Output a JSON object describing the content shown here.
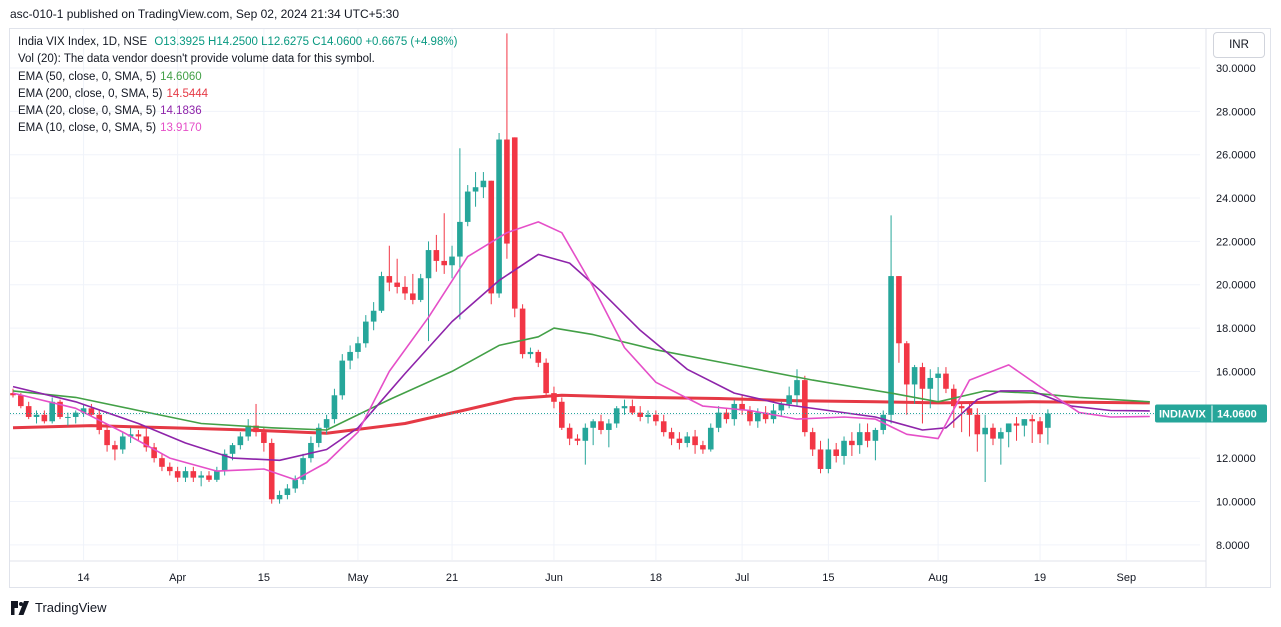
{
  "header": {
    "published_line": "asc-010-1 published on TradingView.com, Sep 02, 2024 21:34 UTC+5:30"
  },
  "legend": {
    "title": "India VIX Index, 1D, NSE",
    "ohlc": "O13.3925  H14.2500  L12.6275  C14.0600  +0.6675 (+4.98%)",
    "volume_note": "Vol (20): The data vendor doesn't provide volume data for this symbol.",
    "ema": [
      {
        "label": "EMA (50, close, 0, SMA, 5)",
        "value": "14.6060",
        "color": "#43a047"
      },
      {
        "label": "EMA (200, close, 0, SMA, 5)",
        "value": "14.5444",
        "color": "#e53945"
      },
      {
        "label": "EMA (20, close, 0, SMA, 5)",
        "value": "14.1836",
        "color": "#8e24aa"
      },
      {
        "label": "EMA (10, close, 0, SMA, 5)",
        "value": "13.9170",
        "color": "#e54fc8"
      }
    ]
  },
  "currency": "INR",
  "price_tag": {
    "symbol": "INDIAVIX",
    "value": "14.0600",
    "color": "#26a69a"
  },
  "footer": {
    "brand": "TradingView"
  },
  "colors": {
    "up": "#26a69a",
    "down": "#f23645",
    "grid": "#f0f3fa",
    "axis_text": "#131722"
  },
  "chart_data": {
    "type": "candlestick",
    "title": "India VIX Index, 1D, NSE",
    "ylim": [
      7.3,
      31.8
    ],
    "y_ticks": [
      "8.0000",
      "10.0000",
      "12.0000",
      "14.0000",
      "16.0000",
      "18.0000",
      "20.0000",
      "22.0000",
      "24.0000",
      "26.0000",
      "28.0000",
      "30.0000"
    ],
    "x_ticks": [
      {
        "i": 9,
        "label": "14"
      },
      {
        "i": 21,
        "label": "Apr"
      },
      {
        "i": 32,
        "label": "15"
      },
      {
        "i": 44,
        "label": "May"
      },
      {
        "i": 56,
        "label": "21"
      },
      {
        "i": 69,
        "label": "Jun"
      },
      {
        "i": 82,
        "label": "18"
      },
      {
        "i": 93,
        "label": "Jul"
      },
      {
        "i": 104,
        "label": "15"
      },
      {
        "i": 118,
        "label": "Aug"
      },
      {
        "i": 131,
        "label": "19"
      },
      {
        "i": 142,
        "label": "Sep"
      }
    ],
    "candles": [
      [
        15.0,
        15.2,
        14.8,
        14.9
      ],
      [
        14.9,
        15.0,
        14.3,
        14.4
      ],
      [
        14.4,
        14.6,
        13.8,
        13.9
      ],
      [
        13.9,
        14.2,
        13.6,
        14.0
      ],
      [
        14.0,
        14.2,
        13.6,
        13.7
      ],
      [
        13.7,
        14.8,
        13.6,
        14.6
      ],
      [
        14.6,
        14.7,
        13.8,
        13.9
      ],
      [
        13.9,
        14.1,
        13.5,
        13.9
      ],
      [
        13.9,
        14.2,
        13.6,
        14.1
      ],
      [
        14.1,
        14.5,
        13.9,
        14.3
      ],
      [
        14.3,
        14.5,
        13.9,
        14.0
      ],
      [
        14.0,
        14.2,
        13.1,
        13.3
      ],
      [
        13.3,
        13.5,
        12.3,
        12.6
      ],
      [
        12.6,
        12.8,
        11.9,
        12.4
      ],
      [
        12.4,
        13.2,
        12.2,
        13.0
      ],
      [
        13.0,
        13.4,
        12.7,
        13.1
      ],
      [
        13.1,
        13.3,
        12.8,
        13.0
      ],
      [
        13.0,
        13.4,
        12.3,
        12.5
      ],
      [
        12.5,
        12.7,
        11.8,
        12.0
      ],
      [
        12.0,
        12.2,
        11.4,
        11.6
      ],
      [
        11.6,
        11.8,
        11.2,
        11.4
      ],
      [
        11.4,
        11.6,
        10.9,
        11.1
      ],
      [
        11.1,
        11.6,
        10.9,
        11.4
      ],
      [
        11.4,
        11.6,
        10.9,
        11.1
      ],
      [
        11.1,
        11.4,
        10.7,
        11.2
      ],
      [
        11.2,
        11.4,
        10.9,
        11.0
      ],
      [
        11.0,
        11.6,
        10.9,
        11.4
      ],
      [
        11.4,
        12.4,
        11.2,
        12.2
      ],
      [
        12.2,
        12.7,
        11.9,
        12.6
      ],
      [
        12.6,
        13.2,
        12.4,
        13.0
      ],
      [
        13.0,
        13.8,
        12.8,
        13.5
      ],
      [
        13.5,
        14.5,
        13.0,
        13.2
      ],
      [
        13.2,
        13.4,
        12.3,
        12.7
      ],
      [
        12.7,
        12.9,
        9.9,
        10.1
      ],
      [
        10.1,
        10.5,
        9.9,
        10.3
      ],
      [
        10.3,
        10.8,
        10.1,
        10.6
      ],
      [
        10.6,
        11.2,
        10.4,
        11.0
      ],
      [
        11.0,
        12.2,
        10.8,
        12.0
      ],
      [
        12.0,
        13.0,
        11.8,
        12.7
      ],
      [
        12.7,
        13.6,
        12.5,
        13.4
      ],
      [
        13.4,
        14.0,
        13.1,
        13.8
      ],
      [
        13.8,
        15.2,
        13.6,
        14.9
      ],
      [
        14.9,
        16.8,
        14.7,
        16.5
      ],
      [
        16.5,
        17.2,
        16.1,
        16.9
      ],
      [
        16.9,
        17.6,
        16.6,
        17.3
      ],
      [
        17.3,
        18.6,
        17.1,
        18.3
      ],
      [
        18.3,
        19.2,
        17.9,
        18.8
      ],
      [
        18.8,
        20.6,
        18.7,
        20.4
      ],
      [
        20.4,
        21.8,
        19.7,
        20.1
      ],
      [
        20.1,
        21.2,
        19.6,
        19.9
      ],
      [
        19.9,
        20.4,
        19.3,
        19.6
      ],
      [
        19.6,
        20.5,
        19.1,
        19.3
      ],
      [
        19.3,
        20.5,
        19.2,
        20.3
      ],
      [
        20.3,
        22.0,
        17.4,
        21.6
      ],
      [
        21.6,
        22.3,
        20.6,
        21.1
      ],
      [
        21.1,
        23.3,
        20.5,
        20.9
      ],
      [
        20.9,
        21.8,
        20.3,
        21.3
      ],
      [
        21.3,
        26.3,
        18.4,
        22.9
      ],
      [
        22.9,
        24.6,
        22.7,
        24.3
      ],
      [
        24.3,
        25.2,
        23.6,
        24.5
      ],
      [
        24.5,
        25.2,
        24.0,
        24.8
      ],
      [
        24.8,
        24.8,
        19.1,
        19.6
      ],
      [
        19.6,
        27.0,
        19.4,
        26.7
      ],
      [
        26.7,
        31.6,
        21.2,
        21.9
      ],
      [
        26.8,
        26.8,
        18.5,
        18.9
      ],
      [
        18.9,
        19.1,
        16.6,
        16.8
      ],
      [
        16.8,
        17.1,
        16.6,
        16.9
      ],
      [
        16.9,
        17.0,
        16.2,
        16.4
      ],
      [
        16.4,
        16.6,
        14.9,
        15.0
      ],
      [
        15.0,
        15.3,
        14.3,
        14.6
      ],
      [
        14.6,
        14.8,
        13.3,
        13.4
      ],
      [
        13.4,
        13.6,
        12.6,
        12.9
      ],
      [
        12.9,
        13.1,
        12.6,
        12.8
      ],
      [
        12.8,
        13.6,
        11.7,
        13.4
      ],
      [
        13.4,
        13.8,
        12.6,
        13.7
      ],
      [
        13.7,
        14.0,
        13.1,
        13.3
      ],
      [
        13.3,
        13.8,
        12.5,
        13.6
      ],
      [
        13.6,
        14.4,
        13.4,
        14.3
      ],
      [
        14.3,
        14.7,
        14.0,
        14.4
      ],
      [
        14.4,
        14.7,
        14.0,
        14.1
      ],
      [
        14.1,
        14.4,
        13.7,
        13.9
      ],
      [
        13.9,
        14.2,
        13.6,
        14.0
      ],
      [
        14.0,
        14.2,
        13.5,
        13.7
      ],
      [
        13.7,
        14.0,
        13.0,
        13.2
      ],
      [
        13.2,
        13.4,
        12.6,
        12.9
      ],
      [
        12.9,
        13.2,
        12.4,
        12.7
      ],
      [
        12.7,
        13.2,
        12.5,
        13.0
      ],
      [
        13.0,
        13.3,
        12.2,
        12.6
      ],
      [
        12.6,
        12.8,
        12.2,
        12.4
      ],
      [
        12.4,
        13.6,
        12.3,
        13.4
      ],
      [
        13.4,
        14.4,
        13.2,
        14.1
      ],
      [
        14.1,
        14.3,
        13.6,
        13.8
      ],
      [
        13.8,
        14.7,
        13.5,
        14.5
      ],
      [
        14.5,
        14.9,
        14.0,
        14.2
      ],
      [
        14.2,
        14.4,
        13.5,
        13.7
      ],
      [
        13.7,
        14.3,
        13.4,
        14.1
      ],
      [
        14.1,
        14.4,
        13.6,
        13.8
      ],
      [
        13.8,
        14.5,
        13.6,
        14.2
      ],
      [
        14.2,
        14.6,
        13.9,
        14.5
      ],
      [
        14.5,
        15.3,
        14.3,
        14.9
      ],
      [
        14.9,
        16.1,
        14.4,
        15.6
      ],
      [
        15.6,
        15.8,
        13.0,
        13.2
      ],
      [
        13.2,
        13.4,
        12.1,
        12.4
      ],
      [
        12.4,
        12.8,
        11.3,
        11.5
      ],
      [
        11.5,
        12.9,
        11.3,
        12.4
      ],
      [
        12.4,
        12.7,
        11.8,
        12.1
      ],
      [
        12.1,
        13.0,
        11.7,
        12.8
      ],
      [
        12.8,
        13.2,
        12.1,
        12.6
      ],
      [
        12.6,
        13.6,
        12.2,
        13.2
      ],
      [
        13.2,
        13.6,
        12.5,
        12.8
      ],
      [
        12.8,
        13.4,
        11.9,
        13.3
      ],
      [
        13.3,
        14.2,
        13.1,
        14.0
      ],
      [
        14.0,
        23.2,
        13.6,
        20.4
      ],
      [
        20.4,
        20.4,
        16.4,
        17.3
      ],
      [
        17.3,
        17.4,
        14.0,
        15.4
      ],
      [
        15.4,
        16.3,
        14.5,
        16.2
      ],
      [
        16.2,
        16.4,
        13.6,
        15.2
      ],
      [
        15.2,
        16.1,
        14.3,
        15.7
      ],
      [
        15.7,
        16.2,
        14.6,
        15.9
      ],
      [
        15.9,
        16.2,
        15.0,
        15.2
      ],
      [
        15.2,
        15.4,
        13.4,
        14.4
      ],
      [
        14.4,
        14.6,
        13.2,
        14.3
      ],
      [
        14.3,
        14.6,
        13.0,
        14.0
      ],
      [
        14.0,
        14.3,
        12.3,
        13.1
      ],
      [
        13.1,
        14.0,
        10.9,
        13.4
      ],
      [
        13.4,
        13.6,
        12.6,
        12.9
      ],
      [
        12.9,
        13.4,
        11.7,
        13.2
      ],
      [
        13.2,
        13.6,
        12.5,
        13.6
      ],
      [
        13.6,
        13.9,
        12.8,
        13.5
      ],
      [
        13.5,
        13.8,
        13.0,
        13.8
      ],
      [
        13.8,
        14.0,
        12.7,
        13.7
      ],
      [
        13.7,
        13.9,
        12.7,
        13.1
      ],
      [
        13.4,
        14.25,
        12.63,
        14.06
      ]
    ],
    "series": [
      {
        "name": "EMA (50, close, 0, SMA, 5)",
        "color": "#43a047",
        "points": [
          [
            0,
            15.1
          ],
          [
            8,
            14.8
          ],
          [
            16,
            14.2
          ],
          [
            24,
            13.6
          ],
          [
            33,
            13.4
          ],
          [
            40,
            13.3
          ],
          [
            48,
            14.7
          ],
          [
            56,
            16.0
          ],
          [
            62,
            17.2
          ],
          [
            67,
            17.6
          ],
          [
            69,
            18.0
          ],
          [
            74,
            17.7
          ],
          [
            82,
            17.0
          ],
          [
            92,
            16.3
          ],
          [
            102,
            15.6
          ],
          [
            112,
            15.0
          ],
          [
            118,
            14.6
          ],
          [
            124,
            15.1
          ],
          [
            130,
            15.0
          ],
          [
            136,
            14.8
          ],
          [
            145,
            14.6
          ]
        ]
      },
      {
        "name": "EMA (200, close, 0, SMA, 5)",
        "color": "#e53945",
        "points": [
          [
            0,
            13.4
          ],
          [
            10,
            13.5
          ],
          [
            20,
            13.4
          ],
          [
            30,
            13.3
          ],
          [
            40,
            13.15
          ],
          [
            50,
            13.6
          ],
          [
            58,
            14.25
          ],
          [
            64,
            14.75
          ],
          [
            70,
            14.9
          ],
          [
            80,
            14.8
          ],
          [
            90,
            14.75
          ],
          [
            100,
            14.65
          ],
          [
            110,
            14.6
          ],
          [
            118,
            14.55
          ],
          [
            130,
            14.6
          ],
          [
            145,
            14.55
          ]
        ]
      },
      {
        "name": "EMA (20, close, 0, SMA, 5)",
        "color": "#8e24aa",
        "points": [
          [
            0,
            15.3
          ],
          [
            8,
            14.6
          ],
          [
            16,
            13.6
          ],
          [
            22,
            12.7
          ],
          [
            28,
            12.0
          ],
          [
            34,
            11.9
          ],
          [
            40,
            12.4
          ],
          [
            44,
            13.4
          ],
          [
            50,
            15.9
          ],
          [
            56,
            18.3
          ],
          [
            62,
            20.2
          ],
          [
            67,
            21.4
          ],
          [
            71,
            21.0
          ],
          [
            75,
            19.7
          ],
          [
            80,
            17.9
          ],
          [
            86,
            16.1
          ],
          [
            92,
            15.0
          ],
          [
            98,
            14.5
          ],
          [
            104,
            14.2
          ],
          [
            110,
            13.9
          ],
          [
            116,
            13.3
          ],
          [
            119,
            13.4
          ],
          [
            123,
            14.7
          ],
          [
            126,
            15.1
          ],
          [
            130,
            15.1
          ],
          [
            135,
            14.4
          ],
          [
            140,
            14.2
          ],
          [
            145,
            14.18
          ]
        ]
      },
      {
        "name": "EMA (10, close, 0, SMA, 5)",
        "color": "#e54fc8",
        "points": [
          [
            0,
            15.0
          ],
          [
            8,
            14.3
          ],
          [
            14,
            13.2
          ],
          [
            20,
            12.0
          ],
          [
            26,
            11.4
          ],
          [
            32,
            11.5
          ],
          [
            36,
            11.0
          ],
          [
            40,
            11.8
          ],
          [
            44,
            13.2
          ],
          [
            48,
            16.0
          ],
          [
            53,
            18.5
          ],
          [
            58,
            21.3
          ],
          [
            63,
            22.4
          ],
          [
            67,
            22.9
          ],
          [
            70,
            22.4
          ],
          [
            74,
            19.9
          ],
          [
            78,
            17.1
          ],
          [
            82,
            15.5
          ],
          [
            88,
            14.4
          ],
          [
            94,
            14.2
          ],
          [
            100,
            13.8
          ],
          [
            106,
            13.9
          ],
          [
            110,
            13.8
          ],
          [
            114,
            13.1
          ],
          [
            118,
            12.9
          ],
          [
            122,
            15.6
          ],
          [
            127,
            16.3
          ],
          [
            131,
            15.3
          ],
          [
            136,
            14.1
          ],
          [
            140,
            13.9
          ],
          [
            145,
            13.92
          ]
        ]
      }
    ]
  }
}
